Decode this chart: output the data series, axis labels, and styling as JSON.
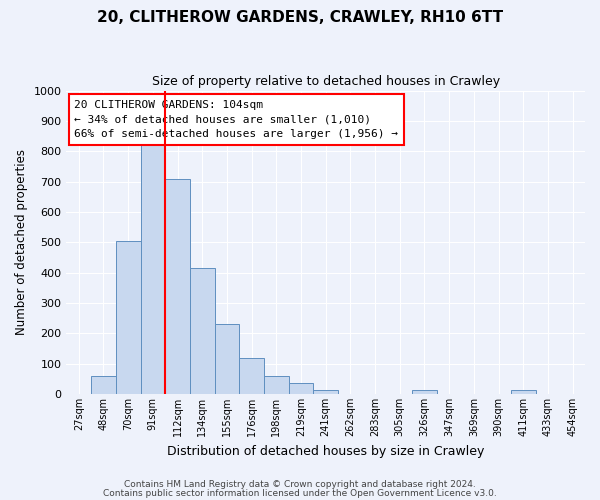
{
  "title": "20, CLITHEROW GARDENS, CRAWLEY, RH10 6TT",
  "subtitle": "Size of property relative to detached houses in Crawley",
  "xlabel": "Distribution of detached houses by size in Crawley",
  "ylabel": "Number of detached properties",
  "bin_labels": [
    "27sqm",
    "48sqm",
    "70sqm",
    "91sqm",
    "112sqm",
    "134sqm",
    "155sqm",
    "176sqm",
    "198sqm",
    "219sqm",
    "241sqm",
    "262sqm",
    "283sqm",
    "305sqm",
    "326sqm",
    "347sqm",
    "369sqm",
    "390sqm",
    "411sqm",
    "433sqm",
    "454sqm"
  ],
  "bar_values": [
    0,
    60,
    505,
    820,
    710,
    415,
    230,
    118,
    60,
    35,
    12,
    0,
    0,
    0,
    12,
    0,
    0,
    0,
    12,
    0,
    0
  ],
  "bar_color": "#c8d8ef",
  "bar_edge_color": "#5f8fc0",
  "ylim": [
    0,
    1000
  ],
  "yticks": [
    0,
    100,
    200,
    300,
    400,
    500,
    600,
    700,
    800,
    900,
    1000
  ],
  "annotation_title": "20 CLITHEROW GARDENS: 104sqm",
  "annotation_line1": "← 34% of detached houses are smaller (1,010)",
  "annotation_line2": "66% of semi-detached houses are larger (1,956) →",
  "footer_line1": "Contains HM Land Registry data © Crown copyright and database right 2024.",
  "footer_line2": "Contains public sector information licensed under the Open Government Licence v3.0.",
  "background_color": "#eef2fb",
  "grid_color": "#ffffff",
  "figsize": [
    6.0,
    5.0
  ],
  "dpi": 100
}
